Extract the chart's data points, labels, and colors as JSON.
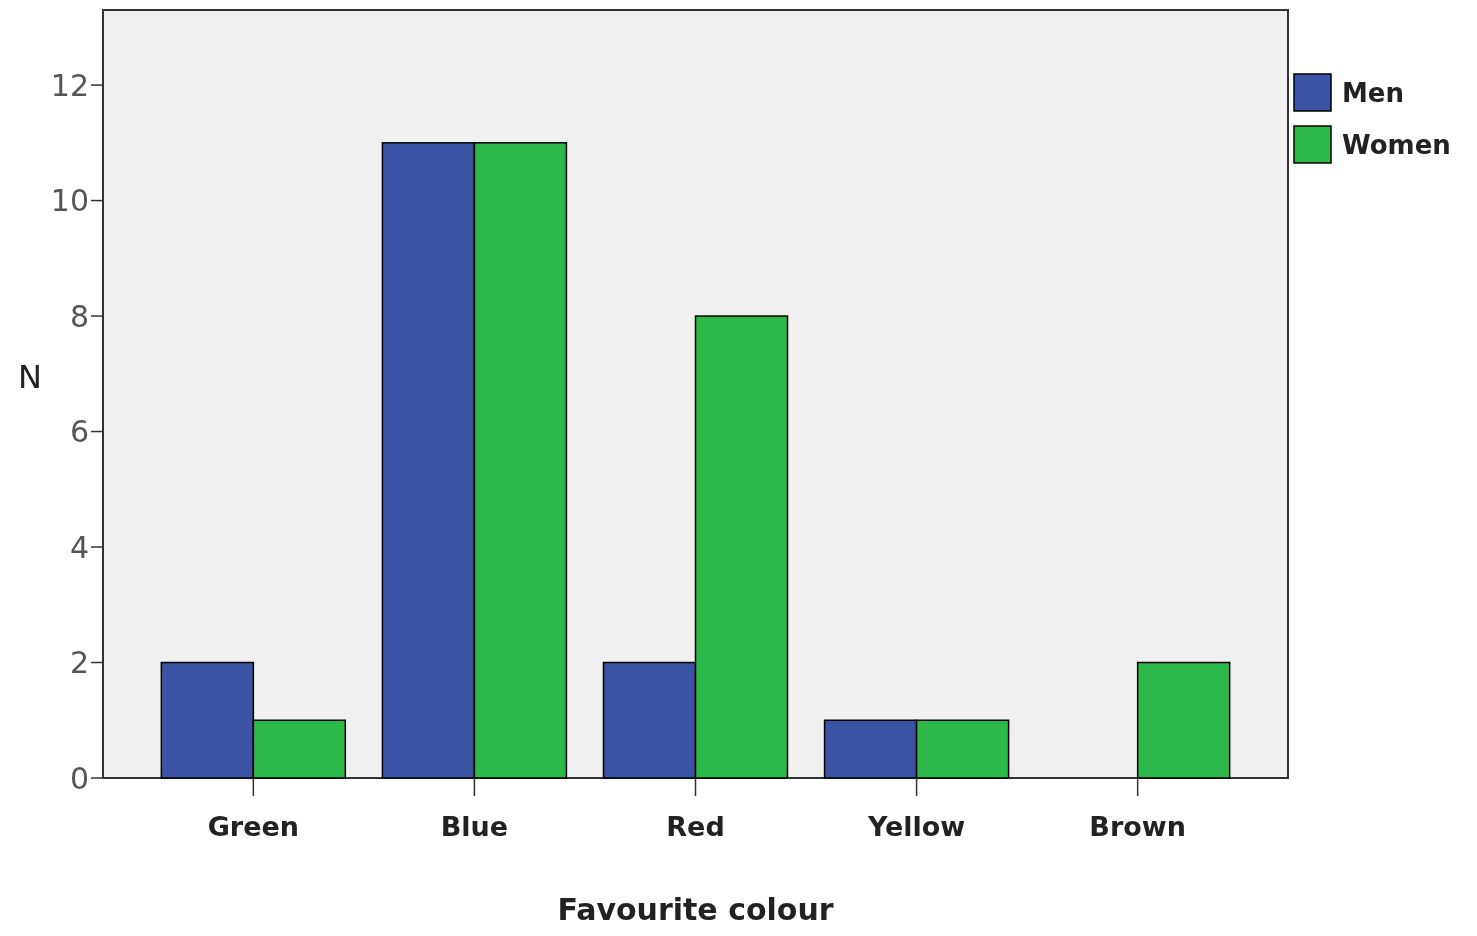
{
  "chart_data": {
    "type": "bar",
    "xlabel": "Favourite colour",
    "ylabel": "N",
    "categories": [
      "Green",
      "Blue",
      "Red",
      "Yellow",
      "Brown"
    ],
    "series": [
      {
        "name": "Men",
        "color": "#3a53a4",
        "values": [
          2,
          11,
          2,
          1,
          0
        ]
      },
      {
        "name": "Women",
        "color": "#2db84a",
        "values": [
          1,
          11,
          8,
          1,
          2
        ]
      }
    ],
    "ylim": [
      0,
      13.3
    ],
    "yticks": [
      0,
      2,
      4,
      6,
      8,
      10,
      12
    ],
    "grid": false,
    "legend": "right"
  }
}
